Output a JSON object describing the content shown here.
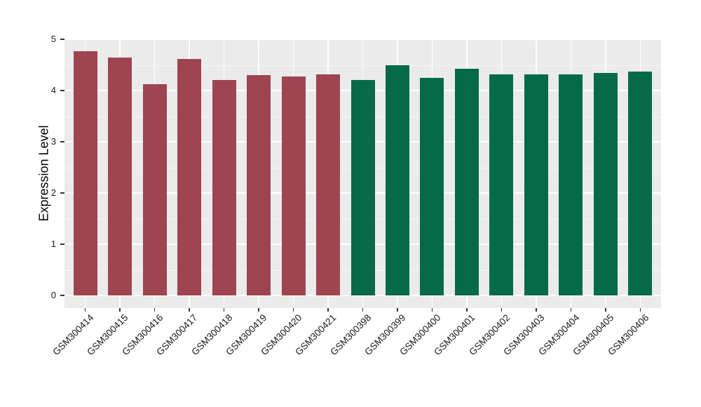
{
  "figure": {
    "colors": {
      "background": "#FFFFFF",
      "panel_background": "#EBEBEB",
      "gridline": "#FFFFFF",
      "tick_mark": "#333333",
      "axis_text": "#1A1A1A",
      "axis_title": "#000000",
      "group1_bar": "#9E4551",
      "group2_bar": "#046A48"
    }
  },
  "chart_data": {
    "type": "bar",
    "title": "",
    "xlabel": "",
    "ylabel": "Expression Level",
    "ylim": [
      0,
      5
    ],
    "yticks": [
      0,
      1,
      2,
      3,
      4,
      5
    ],
    "grid": true,
    "legend_position": "none",
    "categories": [
      "GSM300414",
      "GSM300415",
      "GSM300416",
      "GSM300417",
      "GSM300418",
      "GSM300419",
      "GSM300420",
      "GSM300421",
      "GSM300398",
      "GSM300399",
      "GSM300400",
      "GSM300401",
      "GSM300402",
      "GSM300403",
      "GSM300404",
      "GSM300405",
      "GSM300406"
    ],
    "values": [
      4.77,
      4.65,
      4.13,
      4.62,
      4.21,
      4.3,
      4.27,
      4.31,
      4.21,
      4.5,
      4.24,
      4.43,
      4.32,
      4.31,
      4.32,
      4.34,
      4.37
    ],
    "bar_colors": [
      "#9E4551",
      "#9E4551",
      "#9E4551",
      "#9E4551",
      "#9E4551",
      "#9E4551",
      "#9E4551",
      "#9E4551",
      "#046A48",
      "#046A48",
      "#046A48",
      "#046A48",
      "#046A48",
      "#046A48",
      "#046A48",
      "#046A48",
      "#046A48"
    ]
  }
}
